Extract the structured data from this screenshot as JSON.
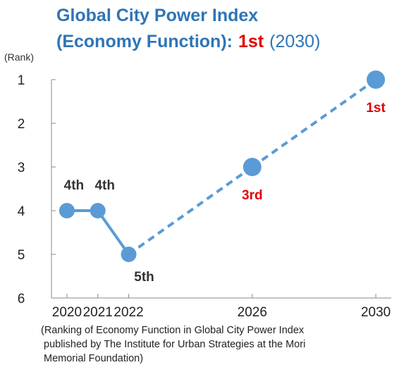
{
  "chart_data": {
    "type": "line",
    "title_line1": "Global City Power Index",
    "title_line2": "(Economy Function):",
    "title_highlight": "1st",
    "title_year": "(2030)",
    "y_axis_label": "(Rank)",
    "x": [
      2020,
      2021,
      2022,
      2026,
      2030
    ],
    "xlim": [
      2019.5,
      2030.5
    ],
    "xticks": [
      2020,
      2021,
      2022,
      2026,
      2030
    ],
    "ylim": [
      1,
      6
    ],
    "y_inverted": true,
    "yticks": [
      1,
      2,
      3,
      4,
      5,
      6
    ],
    "series": [
      {
        "color": "#5b9bd5",
        "values": [
          4,
          4,
          5,
          3,
          1
        ],
        "value_labels": [
          "4th",
          "4th",
          "5th",
          "3rd",
          "1st"
        ],
        "label_colors": [
          "#333333",
          "#333333",
          "#333333",
          "#e00000",
          "#e00000"
        ],
        "segment_styles": [
          "solid",
          "solid",
          "dashed",
          "dashed"
        ]
      }
    ],
    "note": [
      "(Ranking of Economy Function in Global City Power Index",
      "published by The Institute for Urban Strategies at the Mori",
      "Memorial Foundation)"
    ]
  }
}
